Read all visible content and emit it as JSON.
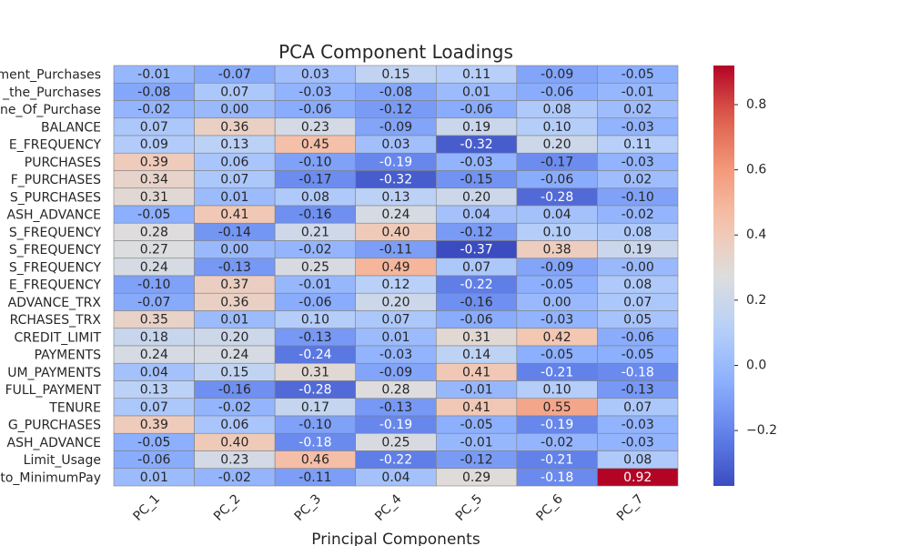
{
  "chart_data": {
    "type": "heatmap",
    "title": "PCA Component Loadings",
    "xlabel": "Principal Components",
    "ylabel": "",
    "columns": [
      "PC_1",
      "PC_2",
      "PC_3",
      "PC_4",
      "PC_5",
      "PC_6",
      "PC_7"
    ],
    "rows": [
      "ment_Purchases",
      "_the_Purchases",
      "ne_Of_Purchase",
      "BALANCE",
      "E_FREQUENCY",
      "PURCHASES",
      "F_PURCHASES",
      "S_PURCHASES",
      "ASH_ADVANCE",
      "S_FREQUENCY",
      "S_FREQUENCY",
      "S_FREQUENCY",
      "E_FREQUENCY",
      "ADVANCE_TRX",
      "RCHASES_TRX",
      "CREDIT_LIMIT",
      "PAYMENTS",
      "UM_PAYMENTS",
      "FULL_PAYMENT",
      "TENURE",
      "G_PURCHASES",
      "ASH_ADVANCE",
      "Limit_Usage",
      "to_MinimumPay"
    ],
    "values": [
      [
        -0.01,
        -0.07,
        0.03,
        0.15,
        0.11,
        -0.09,
        -0.05
      ],
      [
        -0.08,
        0.07,
        -0.03,
        -0.08,
        0.01,
        -0.06,
        -0.01
      ],
      [
        -0.02,
        0.0,
        -0.06,
        -0.12,
        -0.06,
        0.08,
        0.02
      ],
      [
        0.07,
        0.36,
        0.23,
        -0.09,
        0.19,
        0.1,
        -0.03
      ],
      [
        0.09,
        0.13,
        0.45,
        0.03,
        -0.32,
        0.2,
        0.11
      ],
      [
        0.39,
        0.06,
        -0.1,
        -0.19,
        -0.03,
        -0.17,
        -0.03
      ],
      [
        0.34,
        0.07,
        -0.17,
        -0.32,
        -0.15,
        -0.06,
        0.02
      ],
      [
        0.31,
        0.01,
        0.08,
        0.13,
        0.2,
        -0.28,
        -0.1
      ],
      [
        -0.05,
        0.41,
        -0.16,
        0.24,
        0.04,
        0.04,
        -0.02
      ],
      [
        0.28,
        -0.14,
        0.21,
        0.4,
        -0.12,
        0.1,
        0.08
      ],
      [
        0.27,
        0.0,
        -0.02,
        -0.11,
        -0.37,
        0.38,
        0.19
      ],
      [
        0.24,
        -0.13,
        0.25,
        0.49,
        0.07,
        -0.09,
        -0.0
      ],
      [
        -0.1,
        0.37,
        -0.01,
        0.12,
        -0.22,
        -0.05,
        0.08
      ],
      [
        -0.07,
        0.36,
        -0.06,
        0.2,
        -0.16,
        0.0,
        0.07
      ],
      [
        0.35,
        0.01,
        0.1,
        0.07,
        -0.06,
        -0.03,
        0.05
      ],
      [
        0.18,
        0.2,
        -0.13,
        0.01,
        0.31,
        0.42,
        -0.06
      ],
      [
        0.24,
        0.24,
        -0.24,
        -0.03,
        0.14,
        -0.05,
        -0.05
      ],
      [
        0.04,
        0.15,
        0.31,
        -0.09,
        0.41,
        -0.21,
        -0.18
      ],
      [
        0.13,
        -0.16,
        -0.28,
        0.28,
        -0.01,
        0.1,
        -0.13
      ],
      [
        0.07,
        -0.02,
        0.17,
        -0.13,
        0.41,
        0.55,
        0.07
      ],
      [
        0.39,
        0.06,
        -0.1,
        -0.19,
        -0.05,
        -0.19,
        -0.03
      ],
      [
        -0.05,
        0.4,
        -0.18,
        0.25,
        -0.01,
        -0.02,
        -0.03
      ],
      [
        -0.06,
        0.23,
        0.46,
        -0.22,
        -0.12,
        -0.21,
        0.08
      ],
      [
        0.01,
        -0.02,
        -0.11,
        0.04,
        0.29,
        -0.18,
        0.92
      ]
    ],
    "colormap": "coolwarm",
    "vmin": -0.37,
    "vmax": 0.92,
    "colorbar_ticks": [
      -0.2,
      0.0,
      0.2,
      0.4,
      0.6,
      0.8
    ],
    "colorbar_tick_labels": [
      "−0.2",
      "0.0",
      "0.2",
      "0.4",
      "0.6",
      "0.8"
    ],
    "cell_border_color": "#808080"
  }
}
